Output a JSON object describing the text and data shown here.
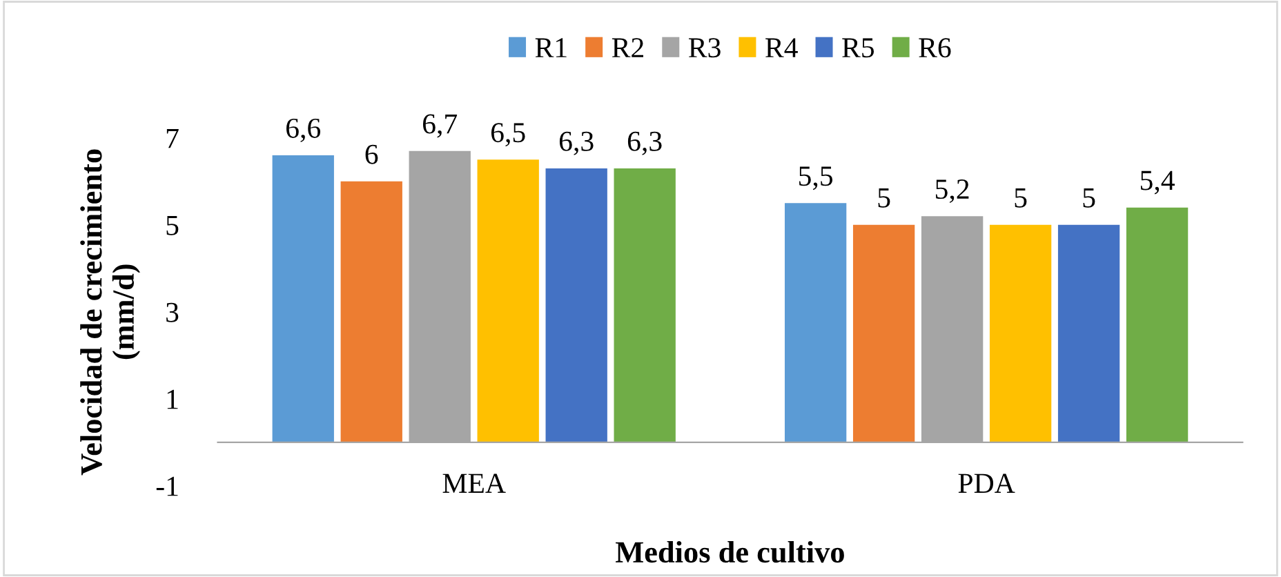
{
  "chart_data": {
    "type": "bar",
    "xlabel": "Medios de cultivo",
    "ylabel": "Velocidad de crecimiento\n(mm/d)",
    "categories": [
      "MEA",
      "PDA"
    ],
    "series": [
      {
        "name": "R1",
        "color": "#5b9bd5",
        "values": [
          6.6,
          5.5
        ],
        "value_labels": [
          "6,6",
          "5,5"
        ]
      },
      {
        "name": "R2",
        "color": "#ed7d31",
        "values": [
          6,
          5
        ],
        "value_labels": [
          "6",
          "5"
        ]
      },
      {
        "name": "R3",
        "color": "#a5a5a5",
        "values": [
          6.7,
          5.2
        ],
        "value_labels": [
          "6,7",
          "5,2"
        ]
      },
      {
        "name": "R4",
        "color": "#ffc000",
        "values": [
          6.5,
          5
        ],
        "value_labels": [
          "6,5",
          "5"
        ]
      },
      {
        "name": "R5",
        "color": "#4472c4",
        "values": [
          6.3,
          5
        ],
        "value_labels": [
          "6,3",
          "5"
        ]
      },
      {
        "name": "R6",
        "color": "#70ad47",
        "values": [
          6.3,
          5.4
        ],
        "value_labels": [
          "6,3",
          "5,4"
        ]
      }
    ],
    "ylim": [
      -1,
      7
    ],
    "yticks": [
      -1,
      1,
      3,
      5,
      7
    ],
    "legend": "top",
    "grid": false
  }
}
